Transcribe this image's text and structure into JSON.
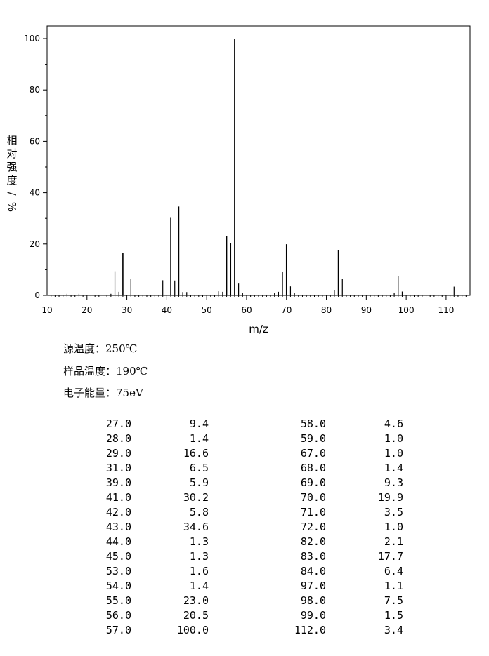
{
  "chart_data": {
    "type": "bar",
    "xlabel": "m/z",
    "ylabel": "相对强度/%",
    "xlim": [
      10,
      116
    ],
    "ylim": [
      0,
      105
    ],
    "x_ticks": [
      10,
      20,
      30,
      40,
      50,
      60,
      70,
      80,
      90,
      100,
      110
    ],
    "y_ticks": [
      0,
      20,
      40,
      60,
      80,
      100
    ],
    "grid": false,
    "series": [
      {
        "x": [
          15,
          18,
          26,
          27,
          28,
          29,
          31,
          39,
          41,
          42,
          43,
          44,
          45,
          53,
          54,
          55,
          56,
          57,
          58,
          59,
          67,
          68,
          69,
          70,
          71,
          72,
          82,
          83,
          84,
          97,
          98,
          99,
          112
        ],
        "values": [
          0.6,
          0.6,
          0.6,
          9.4,
          1.4,
          16.6,
          6.5,
          5.9,
          30.2,
          5.8,
          34.6,
          1.3,
          1.3,
          1.6,
          1.4,
          23.0,
          20.5,
          100.0,
          4.6,
          1.0,
          1.0,
          1.4,
          9.3,
          19.9,
          3.5,
          1.0,
          2.1,
          17.7,
          6.4,
          1.1,
          7.5,
          1.5,
          3.4
        ]
      }
    ]
  },
  "conditions": {
    "source_temp_label": "源温度：",
    "source_temp_value": "250℃",
    "sample_temp_label": "样品温度：",
    "sample_temp_value": "190℃",
    "electron_energy_label": "电子能量：",
    "electron_energy_value": "75eV"
  },
  "peak_table": {
    "left": [
      [
        "27.0",
        "9.4"
      ],
      [
        "28.0",
        "1.4"
      ],
      [
        "29.0",
        "16.6"
      ],
      [
        "31.0",
        "6.5"
      ],
      [
        "39.0",
        "5.9"
      ],
      [
        "41.0",
        "30.2"
      ],
      [
        "42.0",
        "5.8"
      ],
      [
        "43.0",
        "34.6"
      ],
      [
        "44.0",
        "1.3"
      ],
      [
        "45.0",
        "1.3"
      ],
      [
        "53.0",
        "1.6"
      ],
      [
        "54.0",
        "1.4"
      ],
      [
        "55.0",
        "23.0"
      ],
      [
        "56.0",
        "20.5"
      ],
      [
        "57.0",
        "100.0"
      ]
    ],
    "right": [
      [
        "58.0",
        "4.6"
      ],
      [
        "59.0",
        "1.0"
      ],
      [
        "67.0",
        "1.0"
      ],
      [
        "68.0",
        "1.4"
      ],
      [
        "69.0",
        "9.3"
      ],
      [
        "70.0",
        "19.9"
      ],
      [
        "71.0",
        "3.5"
      ],
      [
        "72.0",
        "1.0"
      ],
      [
        "82.0",
        "2.1"
      ],
      [
        "83.0",
        "17.7"
      ],
      [
        "84.0",
        "6.4"
      ],
      [
        "97.0",
        "1.1"
      ],
      [
        "98.0",
        "7.5"
      ],
      [
        "99.0",
        "1.5"
      ],
      [
        "112.0",
        "3.4"
      ]
    ]
  }
}
